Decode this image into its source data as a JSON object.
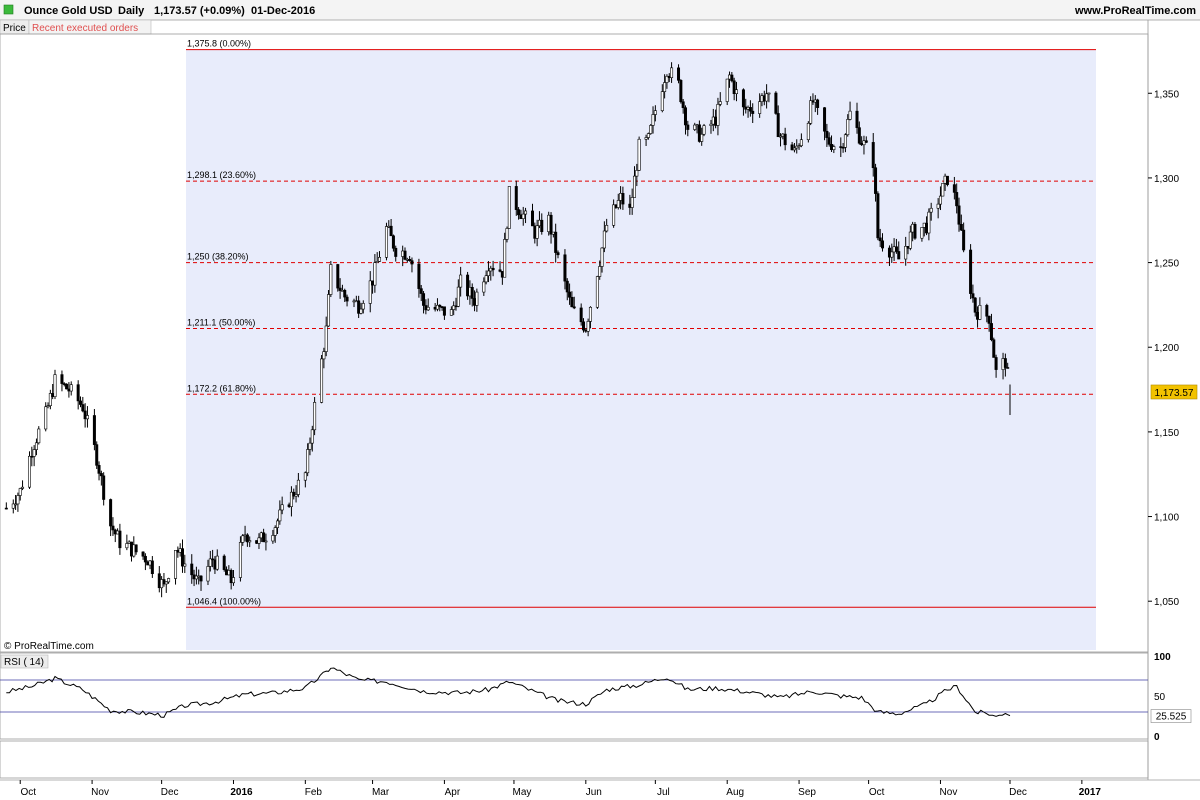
{
  "header": {
    "instrument": "Ounce Gold USD",
    "period": "Daily",
    "quote": "1,173.57 (+0.09%)",
    "date": "01-Dec-2016",
    "site": "www.ProRealTime.com"
  },
  "tabs": {
    "price": "Price",
    "orders": "Recent executed orders"
  },
  "copyright": "© ProRealTime.com",
  "colors": {
    "shade": "#e8ecfb",
    "fib_line": "#e00000",
    "rsi_line": "#000000",
    "rsi_bounds": "#3c3ca0",
    "rsi_overbought_fill": "#c87878",
    "rsi_oversold_fill": "#5aa05a",
    "last_price_badge": "#f2c200"
  },
  "chart_data": [
    {
      "type": "candlestick",
      "title": "Ounce Gold USD",
      "ylim": [
        1020,
        1385
      ],
      "y_ticks": [
        "1,050",
        "1,100",
        "1,150",
        "1,200",
        "1,250",
        "1,300",
        "1,350"
      ],
      "y_tick_values": [
        1050,
        1100,
        1150,
        1200,
        1250,
        1300,
        1350
      ],
      "x_ticks": [
        "Oct",
        "Nov",
        "Dec",
        "2016",
        "Feb",
        "Mar",
        "Apr",
        "May",
        "Jun",
        "Jul",
        "Aug",
        "Sep",
        "Oct",
        "Nov",
        "Dec",
        "2017"
      ],
      "last_price": "1,173.57",
      "last_value": 1173.57,
      "fibonacci_levels": [
        {
          "label": "1,375.8 (0.00%)",
          "value": 1375.8,
          "style": "solid"
        },
        {
          "label": "1,298.1 (23.60%)",
          "value": 1298.1,
          "style": "dashed"
        },
        {
          "label": "1,250 (38.20%)",
          "value": 1250,
          "style": "dashed"
        },
        {
          "label": "1,211.1 (50.00%)",
          "value": 1211.1,
          "style": "dashed"
        },
        {
          "label": "1,172.2 (61.80%)",
          "value": 1172.2,
          "style": "dashed"
        },
        {
          "label": "1,046.4 (100.00%)",
          "value": 1046.4,
          "style": "solid"
        }
      ],
      "price_path": [
        [
          "2015-09-25",
          1105
        ],
        [
          "2015-10-01",
          1115
        ],
        [
          "2015-10-06",
          1140
        ],
        [
          "2015-10-12",
          1160
        ],
        [
          "2015-10-16",
          1180
        ],
        [
          "2015-10-22",
          1175
        ],
        [
          "2015-10-28",
          1165
        ],
        [
          "2015-11-03",
          1135
        ],
        [
          "2015-11-09",
          1095
        ],
        [
          "2015-11-13",
          1085
        ],
        [
          "2015-11-19",
          1080
        ],
        [
          "2015-11-25",
          1075
        ],
        [
          "2015-12-02",
          1058
        ],
        [
          "2015-12-07",
          1082
        ],
        [
          "2015-12-11",
          1072
        ],
        [
          "2015-12-17",
          1060
        ],
        [
          "2015-12-23",
          1075
        ],
        [
          "2015-12-31",
          1062
        ],
        [
          "2016-01-06",
          1090
        ],
        [
          "2016-01-12",
          1085
        ],
        [
          "2016-01-19",
          1095
        ],
        [
          "2016-01-25",
          1110
        ],
        [
          "2016-02-01",
          1125
        ],
        [
          "2016-02-05",
          1165
        ],
        [
          "2016-02-10",
          1210
        ],
        [
          "2016-02-12",
          1245
        ],
        [
          "2016-02-18",
          1230
        ],
        [
          "2016-02-24",
          1225
        ],
        [
          "2016-03-01",
          1240
        ],
        [
          "2016-03-07",
          1270
        ],
        [
          "2016-03-11",
          1258
        ],
        [
          "2016-03-17",
          1255
        ],
        [
          "2016-03-23",
          1225
        ],
        [
          "2016-03-29",
          1222
        ],
        [
          "2016-04-04",
          1220
        ],
        [
          "2016-04-08",
          1238
        ],
        [
          "2016-04-14",
          1228
        ],
        [
          "2016-04-20",
          1250
        ],
        [
          "2016-04-26",
          1245
        ],
        [
          "2016-04-29",
          1290
        ],
        [
          "2016-05-04",
          1280
        ],
        [
          "2016-05-10",
          1268
        ],
        [
          "2016-05-16",
          1275
        ],
        [
          "2016-05-20",
          1252
        ],
        [
          "2016-05-26",
          1222
        ],
        [
          "2016-06-01",
          1212
        ],
        [
          "2016-06-06",
          1245
        ],
        [
          "2016-06-10",
          1272
        ],
        [
          "2016-06-16",
          1288
        ],
        [
          "2016-06-20",
          1280
        ],
        [
          "2016-06-24",
          1318
        ],
        [
          "2016-06-28",
          1322
        ],
        [
          "2016-07-01",
          1340
        ],
        [
          "2016-07-06",
          1365
        ],
        [
          "2016-07-11",
          1355
        ],
        [
          "2016-07-15",
          1330
        ],
        [
          "2016-07-21",
          1325
        ],
        [
          "2016-07-27",
          1335
        ],
        [
          "2016-08-02",
          1360
        ],
        [
          "2016-08-08",
          1340
        ],
        [
          "2016-08-12",
          1342
        ],
        [
          "2016-08-18",
          1350
        ],
        [
          "2016-08-24",
          1325
        ],
        [
          "2016-08-30",
          1315
        ],
        [
          "2016-09-02",
          1325
        ],
        [
          "2016-09-07",
          1345
        ],
        [
          "2016-09-13",
          1322
        ],
        [
          "2016-09-19",
          1318
        ],
        [
          "2016-09-23",
          1338
        ],
        [
          "2016-09-28",
          1322
        ],
        [
          "2016-10-03",
          1310
        ],
        [
          "2016-10-05",
          1265
        ],
        [
          "2016-10-10",
          1258
        ],
        [
          "2016-10-14",
          1252
        ],
        [
          "2016-10-20",
          1268
        ],
        [
          "2016-10-26",
          1272
        ],
        [
          "2016-11-01",
          1290
        ],
        [
          "2016-11-04",
          1300
        ],
        [
          "2016-11-08",
          1285
        ],
        [
          "2016-11-11",
          1255
        ],
        [
          "2016-11-16",
          1222
        ],
        [
          "2016-11-22",
          1218
        ],
        [
          "2016-11-25",
          1185
        ],
        [
          "2016-11-29",
          1192
        ],
        [
          "2016-12-01",
          1173.57
        ]
      ]
    },
    {
      "type": "line",
      "title": "RSI ( 14)",
      "ylim": [
        0,
        100
      ],
      "y_ticks": [
        "100",
        "50",
        "0"
      ],
      "y_tick_values": [
        100,
        50,
        0
      ],
      "bounds": [
        70,
        30
      ],
      "last_value": "25.525",
      "last_numeric": 25.525,
      "rsi_path": [
        [
          "2015-09-25",
          55
        ],
        [
          "2015-10-06",
          62
        ],
        [
          "2015-10-16",
          72
        ],
        [
          "2015-10-28",
          58
        ],
        [
          "2015-11-09",
          32
        ],
        [
          "2015-11-19",
          30
        ],
        [
          "2015-12-02",
          26
        ],
        [
          "2015-12-11",
          38
        ],
        [
          "2015-12-23",
          42
        ],
        [
          "2016-01-06",
          52
        ],
        [
          "2016-01-19",
          54
        ],
        [
          "2016-02-01",
          60
        ],
        [
          "2016-02-10",
          80
        ],
        [
          "2016-02-12",
          86
        ],
        [
          "2016-02-24",
          70
        ],
        [
          "2016-03-07",
          68
        ],
        [
          "2016-03-23",
          56
        ],
        [
          "2016-04-08",
          54
        ],
        [
          "2016-04-20",
          58
        ],
        [
          "2016-04-29",
          68
        ],
        [
          "2016-05-10",
          55
        ],
        [
          "2016-05-20",
          44
        ],
        [
          "2016-06-01",
          40
        ],
        [
          "2016-06-10",
          58
        ],
        [
          "2016-06-24",
          64
        ],
        [
          "2016-07-06",
          74
        ],
        [
          "2016-07-15",
          58
        ],
        [
          "2016-07-27",
          60
        ],
        [
          "2016-08-08",
          56
        ],
        [
          "2016-08-24",
          48
        ],
        [
          "2016-09-07",
          56
        ],
        [
          "2016-09-19",
          50
        ],
        [
          "2016-09-28",
          48
        ],
        [
          "2016-10-05",
          30
        ],
        [
          "2016-10-14",
          28
        ],
        [
          "2016-10-26",
          40
        ],
        [
          "2016-11-04",
          58
        ],
        [
          "2016-11-08",
          62
        ],
        [
          "2016-11-16",
          30
        ],
        [
          "2016-11-22",
          28
        ],
        [
          "2016-11-25",
          24
        ],
        [
          "2016-11-29",
          30
        ],
        [
          "2016-12-01",
          25.525
        ]
      ]
    }
  ]
}
